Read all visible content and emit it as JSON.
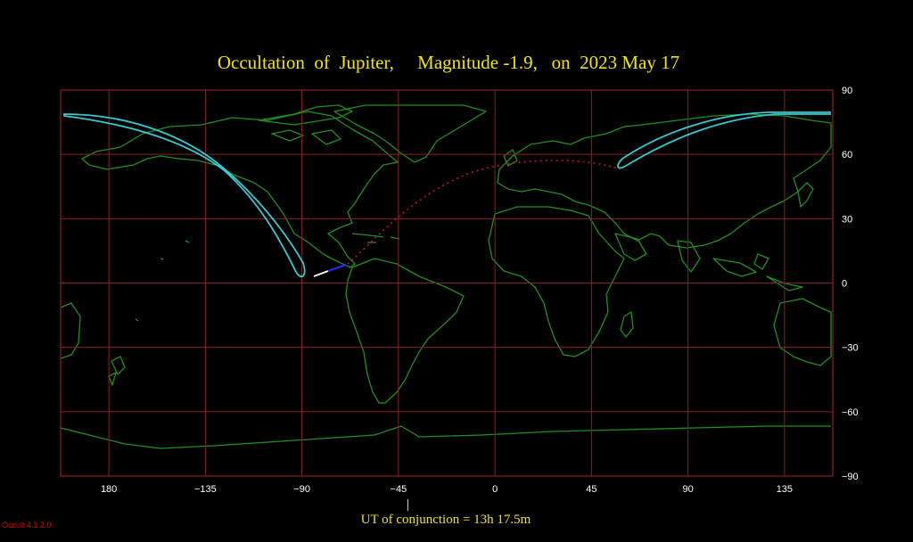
{
  "title": "Occultation  of  Jupiter,     Magnitude -1.9,   on  2023 May 17",
  "map": {
    "projection": "equirectangular",
    "center_longitude": -22.5,
    "lon_range": [
      -202.5,
      157.5
    ],
    "lat_range": [
      -90,
      90
    ],
    "colors": {
      "background": "#000000",
      "grid": "#8b2020",
      "coast": "#1f8f1f",
      "limit": "#37c8d0",
      "path": "#c01818",
      "track_start": "#ffffff",
      "track_mid": "#2a2aff"
    },
    "lon_ticks": [
      {
        "value": 180,
        "label": "180"
      },
      {
        "value": -135,
        "label": "−135"
      },
      {
        "value": -90,
        "label": "−90"
      },
      {
        "value": -45,
        "label": "−45"
      },
      {
        "value": 0,
        "label": "0"
      },
      {
        "value": 45,
        "label": "45"
      },
      {
        "value": 90,
        "label": "90"
      },
      {
        "value": 135,
        "label": "135"
      }
    ],
    "lat_ticks": [
      {
        "value": 90,
        "label": "90"
      },
      {
        "value": 60,
        "label": "60"
      },
      {
        "value": 30,
        "label": "30"
      },
      {
        "value": 0,
        "label": "0"
      },
      {
        "value": -30,
        "label": "−30"
      },
      {
        "value": -60,
        "label": "−60"
      },
      {
        "value": -90,
        "label": "−90"
      }
    ]
  },
  "conjunction": {
    "label": "UT of conjunction = 13h 17.5m",
    "longitude": -40.6
  },
  "version": "Occult 4.1.2.0"
}
